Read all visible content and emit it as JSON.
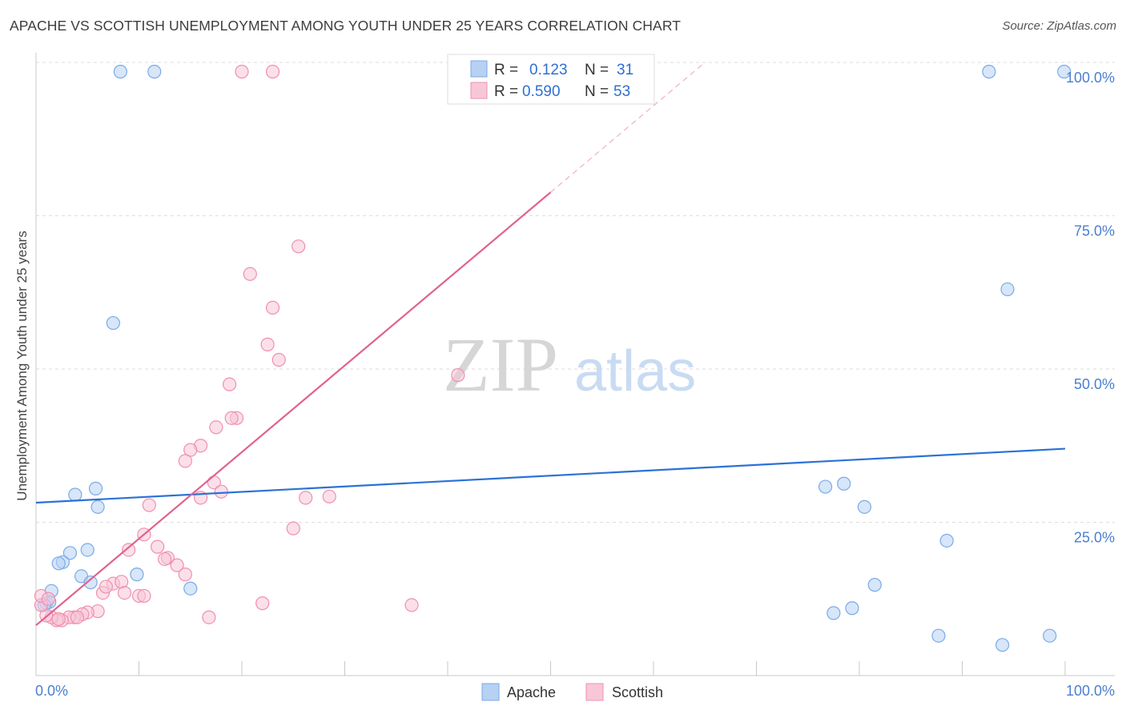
{
  "chart_data": {
    "type": "scatter",
    "title": "APACHE VS SCOTTISH UNEMPLOYMENT AMONG YOUTH UNDER 25 YEARS CORRELATION CHART",
    "source": "Source: ZipAtlas.com",
    "xlabel": "",
    "ylabel": "Unemployment Among Youth under 25 years",
    "xlim": [
      0,
      100
    ],
    "ylim": [
      0,
      100
    ],
    "x_tick_labels": [
      "0.0%",
      "100.0%"
    ],
    "y_ticks": [
      25,
      50,
      75,
      100
    ],
    "y_tick_labels": [
      "25.0%",
      "50.0%",
      "75.0%",
      "100.0%"
    ],
    "grid": true,
    "watermark": {
      "zip": "ZIP",
      "atlas": "atlas"
    },
    "legend": {
      "placement": "top-center",
      "rows": [
        {
          "r_label": "R = ",
          "r_value": "0.123",
          "n_label": "N = ",
          "n_value": "31"
        },
        {
          "r_label": "R = ",
          "r_value": "0.590",
          "n_label": "N = ",
          "n_value": "53"
        }
      ]
    },
    "series": [
      {
        "name": "Apache",
        "color": "#7aaae8",
        "fill": "#b7d1f3",
        "trend": {
          "x0": 0,
          "y0": 28.2,
          "x1": 100,
          "y1": 37.0,
          "dash_from": null,
          "line_color": "#2b72d6"
        },
        "points": [
          [
            8.2,
            98.5
          ],
          [
            11.5,
            98.5
          ],
          [
            7.5,
            57.5
          ],
          [
            5.8,
            30.5
          ],
          [
            3.8,
            29.5
          ],
          [
            6.0,
            27.5
          ],
          [
            5.0,
            20.5
          ],
          [
            3.3,
            20.0
          ],
          [
            2.6,
            18.5
          ],
          [
            2.2,
            18.3
          ],
          [
            4.4,
            16.2
          ],
          [
            9.8,
            16.5
          ],
          [
            5.3,
            15.2
          ],
          [
            15.0,
            14.2
          ],
          [
            1.5,
            13.8
          ],
          [
            1.0,
            11.8
          ],
          [
            1.3,
            12.0
          ],
          [
            0.8,
            11.5
          ],
          [
            76.7,
            30.8
          ],
          [
            78.5,
            31.3
          ],
          [
            80.5,
            27.5
          ],
          [
            94.4,
            63.0
          ],
          [
            92.6,
            98.5
          ],
          [
            99.9,
            98.5
          ],
          [
            88.5,
            22.0
          ],
          [
            81.5,
            14.8
          ],
          [
            79.3,
            11.0
          ],
          [
            77.5,
            10.2
          ],
          [
            87.7,
            6.5
          ],
          [
            93.9,
            5.0
          ],
          [
            98.5,
            6.5
          ]
        ]
      },
      {
        "name": "Scottish",
        "color": "#f08fb0",
        "fill": "#f8c7d7",
        "trend": {
          "x0": 0,
          "y0": 8.2,
          "x1": 65,
          "y1": 100,
          "dash_from": 50,
          "line_color": "#e0628f"
        },
        "points": [
          [
            20.0,
            98.5
          ],
          [
            23.0,
            98.5
          ],
          [
            25.5,
            70.0
          ],
          [
            20.8,
            65.5
          ],
          [
            23.0,
            60.0
          ],
          [
            22.5,
            54.0
          ],
          [
            23.6,
            51.5
          ],
          [
            41.0,
            49.0
          ],
          [
            18.8,
            47.5
          ],
          [
            19.5,
            42.0
          ],
          [
            19.0,
            42.0
          ],
          [
            17.5,
            40.5
          ],
          [
            16.0,
            37.5
          ],
          [
            15.0,
            36.8
          ],
          [
            14.5,
            35.0
          ],
          [
            17.3,
            31.5
          ],
          [
            18.0,
            30.0
          ],
          [
            16.0,
            29.0
          ],
          [
            26.2,
            29.0
          ],
          [
            28.5,
            29.2
          ],
          [
            11.0,
            27.8
          ],
          [
            25.0,
            24.0
          ],
          [
            10.5,
            23.0
          ],
          [
            9.0,
            20.5
          ],
          [
            11.8,
            21.0
          ],
          [
            12.8,
            19.2
          ],
          [
            12.5,
            19.0
          ],
          [
            13.7,
            18.0
          ],
          [
            14.5,
            16.5
          ],
          [
            7.5,
            15.0
          ],
          [
            8.3,
            15.3
          ],
          [
            6.5,
            13.5
          ],
          [
            8.6,
            13.5
          ],
          [
            10.0,
            13.0
          ],
          [
            10.5,
            13.0
          ],
          [
            22.0,
            11.8
          ],
          [
            36.5,
            11.5
          ],
          [
            16.8,
            9.5
          ],
          [
            6.0,
            10.5
          ],
          [
            5.0,
            10.3
          ],
          [
            4.5,
            10.0
          ],
          [
            3.7,
            9.5
          ],
          [
            3.2,
            9.5
          ],
          [
            2.5,
            9.0
          ],
          [
            2.0,
            9.0
          ],
          [
            1.5,
            9.5
          ],
          [
            1.0,
            9.8
          ],
          [
            0.5,
            11.5
          ],
          [
            0.5,
            13.0
          ],
          [
            1.2,
            12.5
          ],
          [
            4.0,
            9.5
          ],
          [
            6.8,
            14.5
          ],
          [
            2.2,
            9.2
          ]
        ]
      }
    ]
  }
}
